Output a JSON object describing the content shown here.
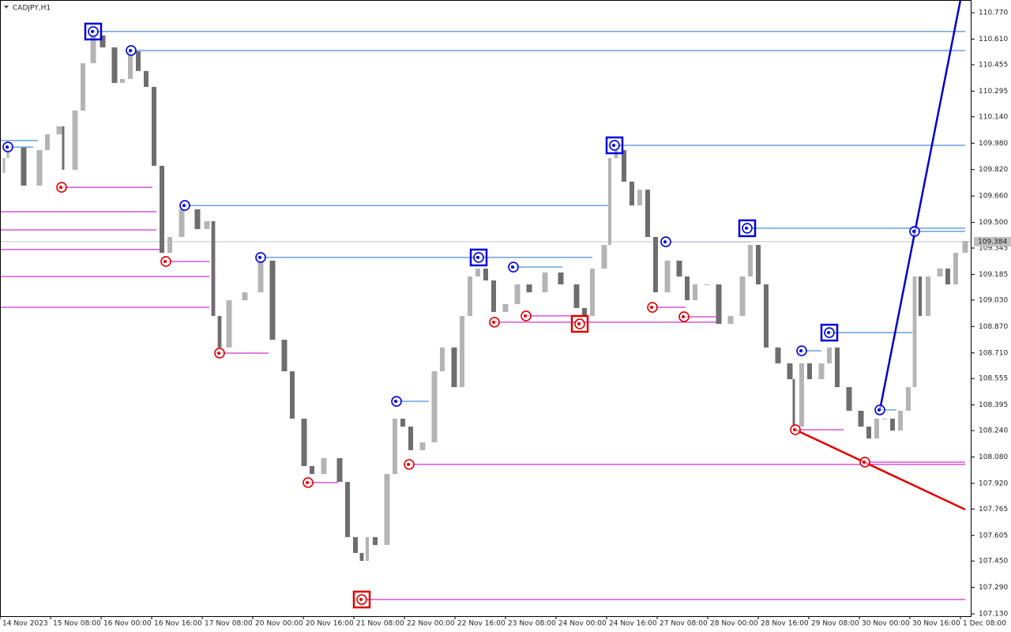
{
  "chart_data": {
    "type": "candlestick",
    "title": "CADJPY,H1",
    "xlim": [
      0,
      307.5
    ],
    "ylim": [
      107.116,
      110.847
    ],
    "up_color": "#b4b4b4",
    "down_color": "#6e6e6e",
    "resistance_color": "#1e73c8",
    "support_color": "#c000c0",
    "resistance_marker_color": "#0000dd",
    "support_marker_color": "#e00000",
    "current_price": 109.384,
    "xticks": [
      {
        "value": 0,
        "label": "14 Nov 2023"
      },
      {
        "value": 16,
        "label": "15 Nov 08:00"
      },
      {
        "value": 32,
        "label": "16 Nov 00:00"
      },
      {
        "value": 48,
        "label": "16 Nov 16:00"
      },
      {
        "value": 64,
        "label": "17 Nov 08:00"
      },
      {
        "value": 80,
        "label": "20 Nov 00:00"
      },
      {
        "value": 96,
        "label": "20 Nov 16:00"
      },
      {
        "value": 112,
        "label": "21 Nov 08:00"
      },
      {
        "value": 128,
        "label": "22 Nov 00:00"
      },
      {
        "value": 144,
        "label": "22 Nov 16:00"
      },
      {
        "value": 160,
        "label": "23 Nov 08:00"
      },
      {
        "value": 176,
        "label": "24 Nov 00:00"
      },
      {
        "value": 192,
        "label": "24 Nov 16:00"
      },
      {
        "value": 208,
        "label": "27 Nov 08:00"
      },
      {
        "value": 224,
        "label": "28 Nov 00:00"
      },
      {
        "value": 240,
        "label": "28 Nov 16:00"
      },
      {
        "value": 256,
        "label": "29 Nov 08:00"
      },
      {
        "value": 272,
        "label": "30 Nov 00:00"
      },
      {
        "value": 288,
        "label": "30 Nov 16:00"
      },
      {
        "value": 304,
        "label": "1 Dec 08:00"
      }
    ],
    "yticks": [
      {
        "value": 110.77,
        "label": "110.770"
      },
      {
        "value": 110.61,
        "label": "110.610"
      },
      110.455,
      110.295,
      {
        "value": 110.14,
        "label": "110.140"
      },
      {
        "value": 109.98,
        "label": "109.980"
      },
      {
        "value": 109.82,
        "label": "109.820"
      },
      {
        "value": 109.66,
        "label": "109.660"
      },
      {
        "value": 109.5,
        "label": "109.500"
      },
      109.345,
      109.185,
      {
        "value": 109.03,
        "label": "109.030"
      },
      {
        "value": 108.87,
        "label": "108.870"
      },
      {
        "value": 108.71,
        "label": "108.710"
      },
      108.555,
      108.395,
      {
        "value": 108.24,
        "label": "108.240"
      },
      {
        "value": 108.08,
        "label": "108.080"
      },
      {
        "value": 107.92,
        "label": "107.920"
      },
      107.765,
      107.605,
      {
        "value": 107.45,
        "label": "107.450"
      },
      {
        "value": 107.29,
        "label": "107.290"
      },
      {
        "value": 107.13,
        "label": "107.130"
      }
    ],
    "candles": {
      "x": [
        1.25,
        2.5,
        7.5,
        12.5,
        15,
        18.75,
        20,
        23.75,
        26.25,
        29.5,
        32.5,
        36.25,
        38.75,
        41.25,
        43.75,
        46.25,
        48.75,
        51.25,
        53.75,
        57.5,
        62.5,
        65.5,
        67.5,
        69.5,
        72.5,
        77.5,
        82.5,
        86.25,
        90,
        92.5,
        96.25,
        98.75,
        102.5,
        107.5,
        110,
        112.5,
        114.5,
        116.25,
        118.75,
        122.5,
        125,
        127.5,
        130,
        133.75,
        137.5,
        140,
        143.75,
        146.25,
        148.75,
        151.25,
        153.75,
        156.25,
        160,
        163.75,
        167.5,
        172.5,
        177.5,
        182.5,
        185,
        187.5,
        191.25,
        193,
        195,
        197.5,
        200,
        202.5,
        205,
        207.5,
        211.25,
        215,
        217.5,
        220,
        223.75,
        227.5,
        231.25,
        235,
        237.5,
        240,
        242.5,
        246.25,
        250,
        251.25,
        253.75,
        256.25,
        260,
        262.5,
        265,
        268.75,
        272.5,
        275,
        277.5,
        280,
        282.5,
        285,
        287.5,
        289.5,
        291.25,
        293.75,
        297.5,
        300,
        302.5,
        305.5
      ],
      "open": [
        109.8,
        109.89,
        109.953,
        109.723,
        109.938,
        110.034,
        110.082,
        109.819,
        110.177,
        110.464,
        110.632,
        110.56,
        110.345,
        110.369,
        110.536,
        110.417,
        110.321,
        109.843,
        109.316,
        109.412,
        109.58,
        109.46,
        109.508,
        108.934,
        108.743,
        109.029,
        109.077,
        109.269,
        108.79,
        108.599,
        108.312,
        108.025,
        107.977,
        108.073,
        107.929,
        107.595,
        107.499,
        107.451,
        107.595,
        107.547,
        107.977,
        108.312,
        108.264,
        108.121,
        108.169,
        108.599,
        108.743,
        108.503,
        108.934,
        109.173,
        109.221,
        109.149,
        108.958,
        109.006,
        109.125,
        109.077,
        109.197,
        109.125,
        108.982,
        108.934,
        109.221,
        109.364,
        109.89,
        109.938,
        109.747,
        109.603,
        109.699,
        109.412,
        109.077,
        109.269,
        109.173,
        109.029,
        109.125,
        109.125,
        108.886,
        108.934,
        109.173,
        109.364,
        109.125,
        108.743,
        108.647,
        108.551,
        108.264,
        108.647,
        108.551,
        108.647,
        108.743,
        108.503,
        108.36,
        108.264,
        108.192,
        108.312,
        108.312,
        108.24,
        108.36,
        108.503,
        109.173,
        108.934,
        109.173,
        109.221,
        109.125,
        109.316
      ],
      "close": [
        109.89,
        109.953,
        109.723,
        109.938,
        110.034,
        110.082,
        109.819,
        110.177,
        110.464,
        110.632,
        110.56,
        110.345,
        110.369,
        110.536,
        110.417,
        110.321,
        109.843,
        109.316,
        109.412,
        109.58,
        109.46,
        109.508,
        108.934,
        108.743,
        109.029,
        109.077,
        109.269,
        108.79,
        108.599,
        108.312,
        108.025,
        107.977,
        108.073,
        107.929,
        107.595,
        107.499,
        107.451,
        107.595,
        107.547,
        107.977,
        108.312,
        108.264,
        108.121,
        108.169,
        108.599,
        108.743,
        108.503,
        108.934,
        109.173,
        109.221,
        109.149,
        108.958,
        109.006,
        109.125,
        109.077,
        109.197,
        109.125,
        108.982,
        108.934,
        109.221,
        109.364,
        109.89,
        109.938,
        109.747,
        109.603,
        109.699,
        109.412,
        109.077,
        109.269,
        109.173,
        109.029,
        109.125,
        109.125,
        108.886,
        108.934,
        109.173,
        109.364,
        109.125,
        108.743,
        108.647,
        108.551,
        108.264,
        108.647,
        108.551,
        108.647,
        108.743,
        108.503,
        108.36,
        108.264,
        108.192,
        108.312,
        108.312,
        108.24,
        108.36,
        108.503,
        109.173,
        108.934,
        109.173,
        109.221,
        109.125,
        109.316,
        109.388
      ]
    },
    "resistance": [
      {
        "x": 29.5,
        "x_end": 305.5,
        "price": 110.656,
        "marker": "square"
      },
      {
        "x": 41.5,
        "x_end": 305.5,
        "price": 110.541,
        "marker": "circle"
      },
      {
        "x": 194.5,
        "x_end": 305.5,
        "price": 109.967,
        "marker": "square"
      },
      {
        "x": 236.5,
        "x_end": 305.5,
        "price": 109.465,
        "marker": "square"
      },
      {
        "x": 289.5,
        "x_end": 305.5,
        "price": 109.446,
        "marker": "circle"
      },
      {
        "x": 58.5,
        "x_end": 192.5,
        "price": 109.603,
        "marker": "circle"
      },
      {
        "x": 82.5,
        "x_end": 187.5,
        "price": 109.288,
        "marker": "circle"
      },
      {
        "x": 151.5,
        "x_end": 151.5,
        "price": 109.288,
        "marker": "square"
      },
      {
        "x": 162.5,
        "x_end": 178,
        "price": 109.23,
        "marker": "circle"
      },
      {
        "x": 210.75,
        "x_end": 237.5,
        "price": 109.383,
        "marker": "circle"
      },
      {
        "x": 262.5,
        "x_end": 288.75,
        "price": 108.833,
        "marker": "square"
      },
      {
        "x": 253.75,
        "x_end": 260,
        "price": 108.723,
        "marker": "circle"
      },
      {
        "x": 125.5,
        "x_end": 135.75,
        "price": 108.417,
        "marker": "circle"
      },
      {
        "x": 278.5,
        "x_end": 283.75,
        "price": 108.365,
        "marker": "circle"
      },
      {
        "x": 2.5,
        "x_end": 10.5,
        "price": 109.957,
        "marker": "circle"
      },
      {
        "x": 0,
        "x_end": 12,
        "price": 109.996,
        "marker": "none"
      }
    ],
    "support": [
      {
        "x": 19.5,
        "x_end": 48.25,
        "price": 109.713,
        "marker": "circle"
      },
      {
        "x": 0,
        "x_end": 49.5,
        "price": 109.565,
        "marker": "none"
      },
      {
        "x": 0,
        "x_end": 49.5,
        "price": 109.455,
        "marker": "none"
      },
      {
        "x": 0,
        "x_end": 51,
        "price": 109.336,
        "marker": "none"
      },
      {
        "x": 0,
        "x_end": 66.25,
        "price": 109.173,
        "marker": "none"
      },
      {
        "x": 0,
        "x_end": 66.25,
        "price": 108.986,
        "marker": "none"
      },
      {
        "x": 52.5,
        "x_end": 66.25,
        "price": 109.264,
        "marker": "circle"
      },
      {
        "x": 69.5,
        "x_end": 85,
        "price": 108.709,
        "marker": "circle"
      },
      {
        "x": 97.5,
        "x_end": 107,
        "price": 107.925,
        "marker": "circle"
      },
      {
        "x": 129.5,
        "x_end": 305.5,
        "price": 108.035,
        "marker": "circle"
      },
      {
        "x": 273.75,
        "x_end": 305.5,
        "price": 108.049,
        "marker": "circle"
      },
      {
        "x": 114.5,
        "x_end": 305.5,
        "price": 107.217,
        "marker": "square"
      },
      {
        "x": 156.5,
        "x_end": 227,
        "price": 108.896,
        "marker": "circle"
      },
      {
        "x": 166.5,
        "x_end": 185,
        "price": 108.934,
        "marker": "circle"
      },
      {
        "x": 183.5,
        "x_end": 183.5,
        "price": 108.886,
        "marker": "square"
      },
      {
        "x": 206.5,
        "x_end": 217,
        "price": 108.986,
        "marker": "circle"
      },
      {
        "x": 216.5,
        "x_end": 227,
        "price": 108.929,
        "marker": "circle"
      },
      {
        "x": 251.75,
        "x_end": 267,
        "price": 108.245,
        "marker": "circle"
      }
    ],
    "trendlines": [
      {
        "color": "#0000cc",
        "x": [
          278.5,
          304
        ],
        "price": [
          108.365,
          110.847
        ]
      },
      {
        "color": "#e00000",
        "x": [
          251.75,
          305.5
        ],
        "price": [
          108.245,
          107.762
        ]
      }
    ]
  }
}
